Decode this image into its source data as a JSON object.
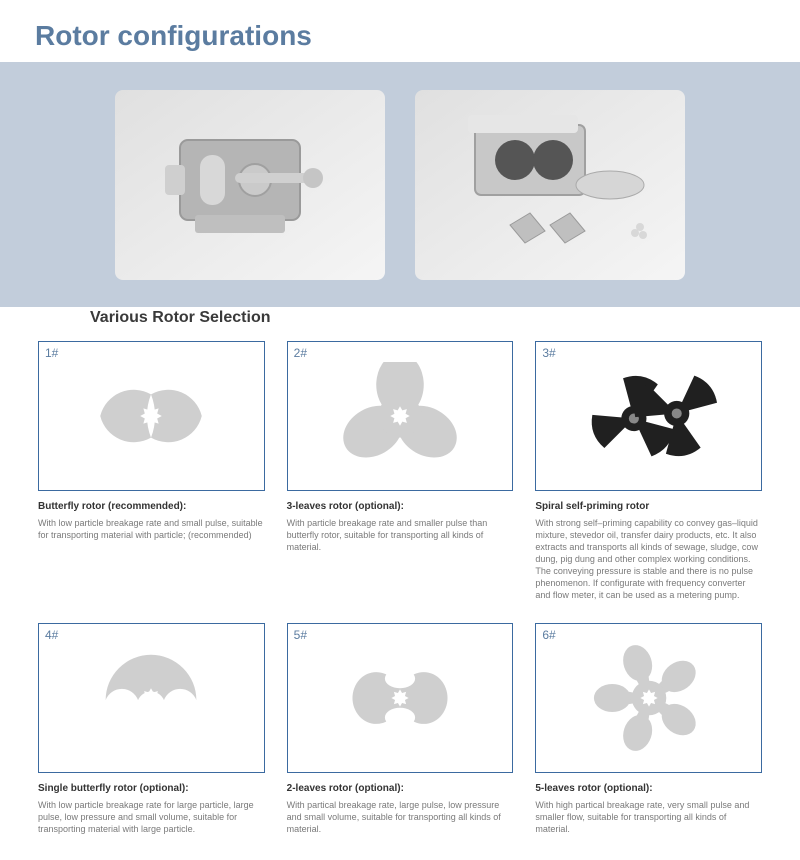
{
  "colors": {
    "title": "#5b7ca0",
    "heroBand": "#c2cddb",
    "cardBorder": "#3b6aa0",
    "cardNum": "#5b7ca0",
    "subtitle": "#3a3a3a",
    "rotorGray": "#cfcfcf",
    "rotorDark": "#202020",
    "descTitle": "#333333",
    "descBody": "#7a7a7a"
  },
  "pageTitle": "Rotor configurations",
  "subtitle": "Various Rotor Selection",
  "rotors": [
    {
      "num": "1#",
      "shape": "butterfly",
      "fill": "#cfcfcf",
      "title": "Butterfly rotor (recommended):",
      "body": "With low particle breakage rate and small pulse, suitable for transporting material with particle; (recommended)"
    },
    {
      "num": "2#",
      "shape": "three-leaves",
      "fill": "#cfcfcf",
      "title": "3-leaves rotor (optional):",
      "body": "With particle breakage rate and smaller pulse than butterfly rotor, suitable for transporting all kinds of material."
    },
    {
      "num": "3#",
      "shape": "spiral",
      "fill": "#202020",
      "title": "Spiral self-priming rotor",
      "body": "With strong self–priming capability co convey gas–liquid mixture, stevedor oil, transfer dairy products, etc. It also extracts and transports all kinds of sewage, sludge, cow dung, pig dung and other complex working conditions. The conveying pressure is stable and there is no pulse phenomenon. If configurate with frequency converter and flow meter, it can be used as a metering pump."
    },
    {
      "num": "4#",
      "shape": "single-butterfly",
      "fill": "#cfcfcf",
      "title": "Single butterfly rotor (optional):",
      "body": "With low particle breakage rate for large particle, large pulse, low pressure and small volume, suitable for transporting material with large particle."
    },
    {
      "num": "5#",
      "shape": "two-leaves",
      "fill": "#cfcfcf",
      "title": "2-leaves rotor (optional):",
      "body": "With partical breakage rate, large pulse, low pressure and small volume, suitable for transporting all kinds of material."
    },
    {
      "num": "6#",
      "shape": "five-leaves",
      "fill": "#cfcfcf",
      "title": "5-leaves rotor (optional):",
      "body": "With high partical breakage rate, very small pulse and smaller flow, suitable for transporting all kinds of material."
    }
  ]
}
